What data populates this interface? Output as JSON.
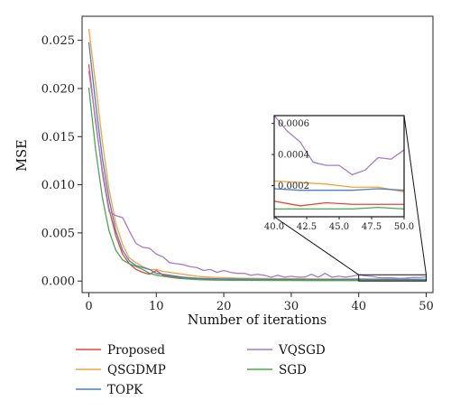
{
  "chart_data": {
    "type": "line",
    "xlabel": "Number of iterations",
    "ylabel": "MSE",
    "xlim": [
      -1,
      51
    ],
    "ylim": [
      -0.0012,
      0.0275
    ],
    "xticks": [
      0,
      10,
      20,
      30,
      40,
      50
    ],
    "yticks": [
      0.0,
      0.005,
      0.01,
      0.015,
      0.02,
      0.025
    ],
    "ytick_labels": [
      "0.000",
      "0.005",
      "0.010",
      "0.015",
      "0.020",
      "0.025"
    ],
    "grid": false,
    "legend_position": "bottom",
    "colors": {
      "Proposed": "#e8453c",
      "QSGDMP": "#f5a23a",
      "TOPK": "#4a7fc0",
      "VQSGD": "#a77bc9",
      "SGD": "#4aa84e"
    },
    "series": [
      {
        "name": "Proposed",
        "x": [
          0,
          1,
          2,
          3,
          4,
          5,
          6,
          7,
          8,
          9,
          10,
          11,
          12,
          13,
          14,
          15,
          16,
          18,
          20,
          22,
          25,
          28,
          30,
          33,
          35,
          38,
          40,
          42,
          44,
          46,
          48,
          50
        ],
        "values": [
          0.0225,
          0.0165,
          0.0115,
          0.0075,
          0.0047,
          0.0028,
          0.0018,
          0.0012,
          0.0009,
          0.0007,
          0.0011,
          0.0006,
          0.0005,
          0.0004,
          0.0003,
          0.0003,
          0.00025,
          0.0002,
          0.00018,
          0.00015,
          0.00013,
          0.00011,
          0.0001,
          0.0001,
          0.0001,
          0.0001,
          0.0001,
          7e-05,
          9e-05,
          8e-05,
          8e-05,
          8e-05
        ]
      },
      {
        "name": "QSGDMP",
        "x": [
          0,
          1,
          2,
          3,
          4,
          5,
          6,
          7,
          8,
          9,
          10,
          11,
          12,
          13,
          14,
          15,
          16,
          18,
          20,
          22,
          25,
          28,
          30,
          33,
          35,
          38,
          40,
          42,
          44,
          46,
          48,
          50
        ],
        "values": [
          0.0262,
          0.0205,
          0.0145,
          0.0095,
          0.006,
          0.0038,
          0.0024,
          0.0019,
          0.0015,
          0.0012,
          0.0012,
          0.001,
          0.0009,
          0.0008,
          0.0007,
          0.0006,
          0.0005,
          0.0004,
          0.00035,
          0.0003,
          0.00027,
          0.00025,
          0.00024,
          0.00023,
          0.00022,
          0.00022,
          0.00023,
          0.00022,
          0.00021,
          0.00019,
          0.00019,
          0.00016
        ]
      },
      {
        "name": "TOPK",
        "x": [
          0,
          1,
          2,
          3,
          4,
          5,
          6,
          7,
          8,
          9,
          10,
          11,
          12,
          13,
          14,
          15,
          16,
          18,
          20,
          22,
          25,
          28,
          30,
          33,
          35,
          38,
          40,
          42,
          44,
          46,
          48,
          50
        ],
        "values": [
          0.0248,
          0.0185,
          0.0128,
          0.0085,
          0.0052,
          0.0032,
          0.0021,
          0.0016,
          0.0014,
          0.0012,
          0.0008,
          0.0007,
          0.0006,
          0.0005,
          0.0004,
          0.00035,
          0.0003,
          0.00025,
          0.00022,
          0.0002,
          0.00018,
          0.00017,
          0.00017,
          0.00016,
          0.00016,
          0.00017,
          0.00018,
          0.00017,
          0.00017,
          0.00017,
          0.00018,
          0.00017
        ]
      },
      {
        "name": "VQSGD",
        "x": [
          0,
          1,
          2,
          3,
          4,
          5,
          6,
          7,
          8,
          9,
          10,
          11,
          12,
          13,
          14,
          15,
          16,
          17,
          18,
          19,
          20,
          21,
          22,
          23,
          24,
          25,
          26,
          27,
          28,
          29,
          30,
          31,
          32,
          33,
          34,
          35,
          36,
          37,
          38,
          39,
          40,
          41,
          42,
          43,
          44,
          45,
          46,
          47,
          48,
          49,
          50
        ],
        "values": [
          0.0218,
          0.0168,
          0.0112,
          0.0072,
          0.0068,
          0.0066,
          0.0052,
          0.0039,
          0.0035,
          0.0034,
          0.0028,
          0.0025,
          0.0019,
          0.0018,
          0.0017,
          0.0015,
          0.0014,
          0.0011,
          0.0012,
          0.0009,
          0.0011,
          0.0009,
          0.0008,
          0.0008,
          0.0006,
          0.0007,
          0.0006,
          0.0004,
          0.0006,
          0.0004,
          0.0005,
          0.0004,
          0.0004,
          0.0007,
          0.0004,
          0.0008,
          0.0004,
          0.0005,
          0.0004,
          0.0005,
          0.00065,
          0.00055,
          0.00048,
          0.00035,
          0.00033,
          0.00033,
          0.00027,
          0.0003,
          0.00038,
          0.00037,
          0.00043
        ]
      },
      {
        "name": "SGD",
        "x": [
          0,
          1,
          2,
          3,
          4,
          5,
          6,
          7,
          8,
          9,
          10,
          11,
          12,
          13,
          14,
          15,
          16,
          18,
          20,
          22,
          25,
          28,
          30,
          33,
          35,
          38,
          40,
          42,
          44,
          46,
          48,
          50
        ],
        "values": [
          0.0201,
          0.0137,
          0.0087,
          0.0052,
          0.0032,
          0.0022,
          0.0018,
          0.0015,
          0.0012,
          0.0008,
          0.0006,
          0.0005,
          0.0004,
          0.0003,
          0.00025,
          0.0002,
          0.00015,
          0.0001,
          9e-05,
          8e-05,
          7e-05,
          6e-05,
          6e-05,
          5e-05,
          5e-05,
          5e-05,
          5e-05,
          5e-05,
          5e-05,
          5e-05,
          6e-05,
          5e-05
        ]
      }
    ],
    "inset": {
      "xlim": [
        40,
        50
      ],
      "ylim": [
        0.0,
        0.00065
      ],
      "xticks": [
        40.0,
        42.5,
        45.0,
        47.5,
        50.0
      ],
      "xtick_labels": [
        "40.0",
        "42.5",
        "45.0",
        "47.5",
        "50.0"
      ],
      "yticks": [
        0.0002,
        0.0004,
        0.0006
      ],
      "ytick_labels": [
        "0.0002",
        "0.0004",
        "0.0006"
      ]
    }
  }
}
